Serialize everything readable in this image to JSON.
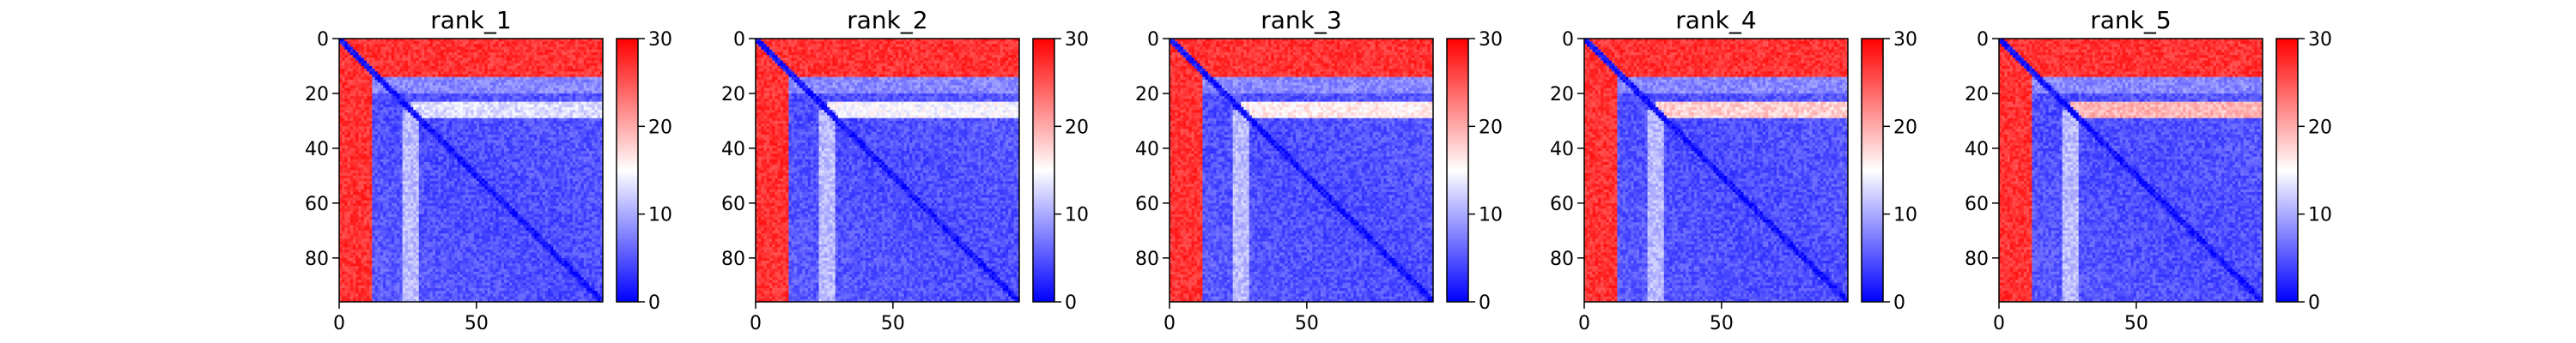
{
  "chart_data": [
    {
      "type": "heatmap",
      "title": "rank_1",
      "x_ticks": [
        0,
        50
      ],
      "y_ticks": [
        0,
        20,
        40,
        60,
        80
      ],
      "matrix_size": 96,
      "x_range": [
        0,
        96
      ],
      "y_range": [
        96,
        0
      ],
      "colorbar": {
        "ticks": [
          0,
          10,
          20,
          30
        ],
        "range": [
          0,
          30
        ],
        "colormap": "bwr",
        "low_color": "#0000ff",
        "mid_color": "#ffffff",
        "high_color": "#ff0000"
      }
    },
    {
      "type": "heatmap",
      "title": "rank_2",
      "x_ticks": [
        0,
        50
      ],
      "y_ticks": [
        0,
        20,
        40,
        60,
        80
      ],
      "matrix_size": 96,
      "x_range": [
        0,
        96
      ],
      "y_range": [
        96,
        0
      ],
      "colorbar": {
        "ticks": [
          0,
          10,
          20,
          30
        ],
        "range": [
          0,
          30
        ],
        "colormap": "bwr",
        "low_color": "#0000ff",
        "mid_color": "#ffffff",
        "high_color": "#ff0000"
      }
    },
    {
      "type": "heatmap",
      "title": "rank_3",
      "x_ticks": [
        0,
        50
      ],
      "y_ticks": [
        0,
        20,
        40,
        60,
        80
      ],
      "matrix_size": 96,
      "x_range": [
        0,
        96
      ],
      "y_range": [
        96,
        0
      ],
      "colorbar": {
        "ticks": [
          0,
          10,
          20,
          30
        ],
        "range": [
          0,
          30
        ],
        "colormap": "bwr",
        "low_color": "#0000ff",
        "mid_color": "#ffffff",
        "high_color": "#ff0000"
      }
    },
    {
      "type": "heatmap",
      "title": "rank_4",
      "x_ticks": [
        0,
        50
      ],
      "y_ticks": [
        0,
        20,
        40,
        60,
        80
      ],
      "matrix_size": 96,
      "x_range": [
        0,
        96
      ],
      "y_range": [
        96,
        0
      ],
      "colorbar": {
        "ticks": [
          0,
          10,
          20,
          30
        ],
        "range": [
          0,
          30
        ],
        "colormap": "bwr",
        "low_color": "#0000ff",
        "mid_color": "#ffffff",
        "high_color": "#ff0000"
      }
    },
    {
      "type": "heatmap",
      "title": "rank_5",
      "x_ticks": [
        0,
        50
      ],
      "y_ticks": [
        0,
        20,
        40,
        60,
        80
      ],
      "matrix_size": 96,
      "x_range": [
        0,
        96
      ],
      "y_range": [
        96,
        0
      ],
      "colorbar": {
        "ticks": [
          0,
          10,
          20,
          30
        ],
        "range": [
          0,
          30
        ],
        "colormap": "bwr",
        "low_color": "#0000ff",
        "mid_color": "#ffffff",
        "high_color": "#ff0000"
      }
    }
  ]
}
